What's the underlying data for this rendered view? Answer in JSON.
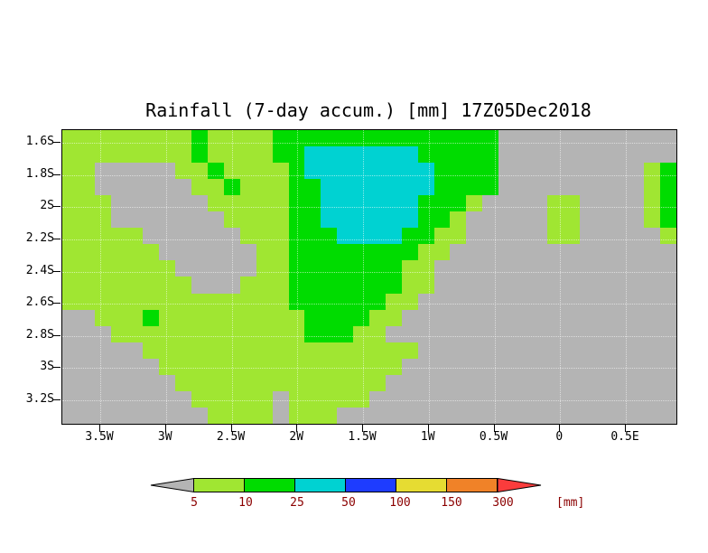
{
  "title": "Rainfall (7-day accum.) [mm] 17Z05Dec2018",
  "chart_data": {
    "type": "heatmap",
    "title": "Rainfall (7-day accum.) [mm] 17Z05Dec2018",
    "x_axis": {
      "tick_labels": [
        "3.5W",
        "3W",
        "2.5W",
        "2W",
        "1.5W",
        "1W",
        "0.5W",
        "0",
        "0.5E"
      ]
    },
    "y_axis": {
      "tick_labels": [
        "1.6S",
        "1.8S",
        "2S",
        "2.2S",
        "2.4S",
        "2.6S",
        "2.8S",
        "3S",
        "3.2S"
      ]
    },
    "grid_rows": 18,
    "grid_cols": 38,
    "value_classes": [
      {
        "code": "0",
        "range": "< 5 mm",
        "color": "#b4b4b4"
      },
      {
        "code": "1",
        "range": "5-10 mm",
        "color": "#a0e632"
      },
      {
        "code": "2",
        "range": "10-25 mm",
        "color": "#00dc00"
      },
      {
        "code": "3",
        "range": "25-50 mm",
        "color": "#00d2d2"
      }
    ],
    "grid_rle": [
      [
        [
          "1",
          8
        ],
        [
          "2",
          1
        ],
        [
          "1",
          4
        ],
        [
          "2",
          14
        ],
        [
          "0",
          11
        ]
      ],
      [
        [
          "1",
          8
        ],
        [
          "2",
          1
        ],
        [
          "1",
          4
        ],
        [
          "2",
          2
        ],
        [
          "3",
          7
        ],
        [
          "2",
          5
        ],
        [
          "0",
          11
        ]
      ],
      [
        [
          "1",
          2
        ],
        [
          "0",
          5
        ],
        [
          "1",
          2
        ],
        [
          "2",
          1
        ],
        [
          "1",
          4
        ],
        [
          "2",
          1
        ],
        [
          "3",
          8
        ],
        [
          "2",
          4
        ],
        [
          "0",
          9
        ],
        [
          "1",
          1
        ],
        [
          "2",
          1
        ]
      ],
      [
        [
          "1",
          2
        ],
        [
          "0",
          6
        ],
        [
          "1",
          2
        ],
        [
          "2",
          1
        ],
        [
          "1",
          3
        ],
        [
          "2",
          2
        ],
        [
          "3",
          7
        ],
        [
          "2",
          4
        ],
        [
          "0",
          9
        ],
        [
          "1",
          1
        ],
        [
          "2",
          1
        ]
      ],
      [
        [
          "1",
          3
        ],
        [
          "0",
          6
        ],
        [
          "1",
          5
        ],
        [
          "2",
          2
        ],
        [
          "3",
          6
        ],
        [
          "2",
          3
        ],
        [
          "1",
          1
        ],
        [
          "0",
          4
        ],
        [
          "1",
          2
        ],
        [
          "0",
          4
        ],
        [
          "1",
          1
        ],
        [
          "2",
          1
        ]
      ],
      [
        [
          "1",
          3
        ],
        [
          "0",
          7
        ],
        [
          "1",
          4
        ],
        [
          "2",
          2
        ],
        [
          "3",
          6
        ],
        [
          "2",
          2
        ],
        [
          "1",
          1
        ],
        [
          "0",
          5
        ],
        [
          "1",
          2
        ],
        [
          "0",
          4
        ],
        [
          "1",
          1
        ],
        [
          "2",
          1
        ]
      ],
      [
        [
          "1",
          5
        ],
        [
          "0",
          6
        ],
        [
          "1",
          3
        ],
        [
          "2",
          3
        ],
        [
          "3",
          4
        ],
        [
          "2",
          2
        ],
        [
          "1",
          2
        ],
        [
          "0",
          5
        ],
        [
          "1",
          2
        ],
        [
          "0",
          5
        ],
        [
          "1",
          1
        ]
      ],
      [
        [
          "1",
          6
        ],
        [
          "0",
          6
        ],
        [
          "1",
          2
        ],
        [
          "2",
          8
        ],
        [
          "1",
          2
        ],
        [
          "0",
          14
        ]
      ],
      [
        [
          "1",
          7
        ],
        [
          "0",
          5
        ],
        [
          "1",
          2
        ],
        [
          "2",
          7
        ],
        [
          "1",
          2
        ],
        [
          "0",
          15
        ]
      ],
      [
        [
          "1",
          8
        ],
        [
          "0",
          3
        ],
        [
          "1",
          3
        ],
        [
          "2",
          7
        ],
        [
          "1",
          2
        ],
        [
          "0",
          15
        ]
      ],
      [
        [
          "1",
          14
        ],
        [
          "2",
          6
        ],
        [
          "1",
          2
        ],
        [
          "0",
          16
        ]
      ],
      [
        [
          "0",
          2
        ],
        [
          "1",
          3
        ],
        [
          "2",
          1
        ],
        [
          "1",
          9
        ],
        [
          "2",
          4
        ],
        [
          "1",
          2
        ],
        [
          "0",
          17
        ]
      ],
      [
        [
          "0",
          3
        ],
        [
          "1",
          12
        ],
        [
          "2",
          3
        ],
        [
          "1",
          2
        ],
        [
          "0",
          18
        ]
      ],
      [
        [
          "0",
          5
        ],
        [
          "1",
          17
        ],
        [
          "0",
          16
        ]
      ],
      [
        [
          "0",
          6
        ],
        [
          "1",
          15
        ],
        [
          "0",
          17
        ]
      ],
      [
        [
          "0",
          7
        ],
        [
          "1",
          13
        ],
        [
          "0",
          18
        ]
      ],
      [
        [
          "0",
          8
        ],
        [
          "1",
          5
        ],
        [
          "0",
          1
        ],
        [
          "1",
          5
        ],
        [
          "0",
          19
        ]
      ],
      [
        [
          "0",
          9
        ],
        [
          "1",
          4
        ],
        [
          "0",
          1
        ],
        [
          "1",
          3
        ],
        [
          "0",
          21
        ]
      ]
    ],
    "colorbar": {
      "tick_labels": [
        "5",
        "10",
        "25",
        "50",
        "100",
        "150",
        "300"
      ],
      "units": "[mm]",
      "segment_colors": [
        "#a0e632",
        "#00dc00",
        "#00d2d2",
        "#1e3cff",
        "#e6dc32",
        "#f08228"
      ],
      "arrow_left_color": "#b4b4b4",
      "arrow_right_color": "#fa3c3c",
      "label_color": "#8b0000"
    }
  }
}
